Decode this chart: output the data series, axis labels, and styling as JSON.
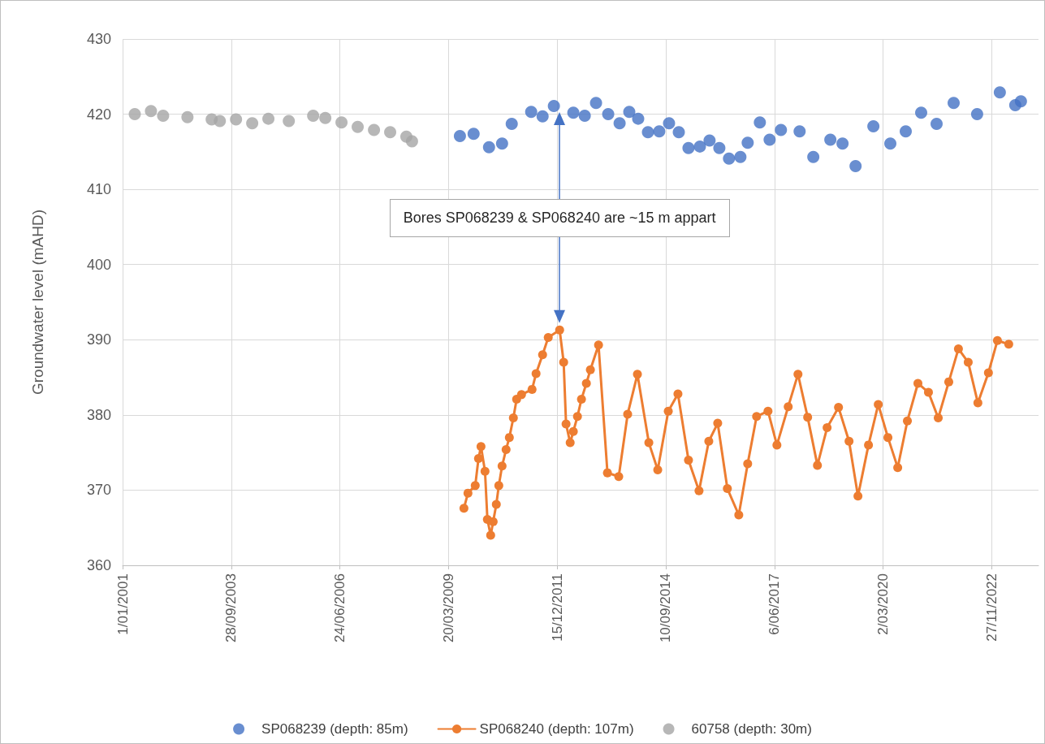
{
  "chart_data": {
    "type": "scatter",
    "ylabel": "Groundwater level (mAHD)",
    "xlim": [
      "2001-01-01",
      "2024-02-01"
    ],
    "xticks": [
      {
        "value": "2001-01-01",
        "label": "1/01/2001"
      },
      {
        "value": "2003-09-28",
        "label": "28/09/2003"
      },
      {
        "value": "2006-06-24",
        "label": "24/06/2006"
      },
      {
        "value": "2009-03-20",
        "label": "20/03/2009"
      },
      {
        "value": "2011-12-15",
        "label": "15/12/2011"
      },
      {
        "value": "2014-09-10",
        "label": "10/09/2014"
      },
      {
        "value": "2017-06-06",
        "label": "6/06/2017"
      },
      {
        "value": "2020-03-02",
        "label": "2/03/2020"
      },
      {
        "value": "2022-11-27",
        "label": "27/11/2022"
      }
    ],
    "ylim": [
      360,
      430
    ],
    "yticks": [
      360,
      370,
      380,
      390,
      400,
      410,
      420,
      430
    ],
    "grid": true,
    "legend": "bottom",
    "marker": "circle",
    "annotations": [
      "Bores SP068239 & SP068240 are ~15 m appart"
    ],
    "series": [
      {
        "name": "SP068239 (depth: 85m)",
        "color": "#4472c4",
        "x": [
          "2009-07-03",
          "2009-11-06",
          "2010-03-28",
          "2010-07-26",
          "2010-10-23",
          "2011-04-20",
          "2011-08-03",
          "2011-11-15",
          "2012-05-12",
          "2012-08-25",
          "2012-12-07",
          "2013-03-29",
          "2013-07-12",
          "2013-10-09",
          "2013-12-30",
          "2014-03-30",
          "2014-07-12",
          "2014-10-10",
          "2015-01-08",
          "2015-04-07",
          "2015-07-21",
          "2015-10-18",
          "2016-01-16",
          "2016-04-14",
          "2016-07-28",
          "2016-10-03",
          "2017-01-23",
          "2017-04-23",
          "2017-08-05",
          "2018-01-24",
          "2018-05-30",
          "2018-11-03",
          "2019-02-23",
          "2019-06-23",
          "2019-12-04",
          "2020-05-08",
          "2020-09-27",
          "2021-02-16",
          "2021-07-08",
          "2021-12-12",
          "2022-07-16",
          "2023-02-10",
          "2023-07-02",
          "2023-08-23"
        ],
        "values": [
          417.1,
          417.4,
          415.6,
          416.1,
          418.7,
          420.3,
          419.7,
          421.1,
          420.2,
          419.8,
          421.5,
          420.0,
          418.8,
          420.3,
          419.4,
          417.6,
          417.7,
          418.8,
          417.6,
          415.5,
          415.7,
          416.5,
          415.5,
          414.1,
          414.3,
          416.2,
          418.9,
          416.6,
          417.9,
          417.7,
          414.3,
          416.6,
          416.1,
          413.1,
          418.4,
          416.1,
          417.7,
          420.2,
          418.7,
          421.5,
          420.0,
          422.9,
          421.2,
          421.7
        ]
      },
      {
        "name": "SP068240 (depth: 107m)",
        "type": "line",
        "color": "#ed7d31",
        "x": [
          "2009-08-09",
          "2009-09-15",
          "2009-11-21",
          "2009-12-21",
          "2010-01-13",
          "2010-02-19",
          "2010-03-13",
          "2010-04-12",
          "2010-05-05",
          "2010-06-03",
          "2010-06-26",
          "2010-07-26",
          "2010-09-01",
          "2010-10-01",
          "2010-11-07",
          "2010-12-07",
          "2011-01-21",
          "2011-04-28",
          "2011-06-04",
          "2011-08-03",
          "2011-09-24",
          "2012-01-07",
          "2012-02-13",
          "2012-03-06",
          "2012-04-13",
          "2012-05-12",
          "2012-06-19",
          "2012-07-26",
          "2012-09-09",
          "2012-10-16",
          "2012-12-30",
          "2013-03-22",
          "2013-07-04",
          "2013-09-24",
          "2013-12-23",
          "2014-04-07",
          "2014-06-28",
          "2014-10-03",
          "2014-12-31",
          "2015-04-07",
          "2015-07-13",
          "2015-10-11",
          "2016-01-01",
          "2016-03-30",
          "2016-07-13",
          "2016-10-03",
          "2016-12-24",
          "2017-04-08",
          "2017-06-29",
          "2017-10-11",
          "2018-01-09",
          "2018-04-08",
          "2018-07-07",
          "2018-10-04",
          "2019-01-17",
          "2019-04-24",
          "2019-07-15",
          "2019-10-20",
          "2020-01-18",
          "2020-04-16",
          "2020-07-15",
          "2020-10-12",
          "2021-01-17",
          "2021-04-24",
          "2021-07-23",
          "2021-10-28",
          "2022-01-25",
          "2022-04-25",
          "2022-07-23",
          "2022-10-28",
          "2023-01-19",
          "2023-05-03"
        ],
        "values": [
          367.6,
          369.6,
          370.6,
          374.2,
          375.8,
          372.5,
          366.1,
          364.0,
          365.8,
          368.1,
          370.6,
          373.2,
          375.4,
          377.0,
          379.6,
          382.1,
          382.7,
          383.4,
          385.5,
          388.0,
          390.3,
          391.3,
          387.0,
          378.8,
          376.3,
          377.8,
          379.8,
          382.1,
          384.2,
          386.0,
          389.3,
          372.3,
          371.8,
          380.1,
          385.4,
          376.3,
          372.7,
          380.5,
          382.8,
          374.0,
          369.9,
          376.5,
          378.9,
          370.2,
          366.7,
          373.5,
          379.8,
          380.5,
          376.0,
          381.1,
          385.4,
          379.7,
          373.3,
          378.3,
          381.0,
          376.5,
          369.2,
          376.0,
          381.4,
          377.0,
          373.0,
          379.2,
          384.2,
          383.0,
          379.6,
          384.4,
          388.8,
          387.0,
          381.6,
          385.6,
          389.9,
          389.4
        ]
      },
      {
        "name": "60758 (depth: 30m)",
        "color": "#a5a5a5",
        "x": [
          "2001-04-23",
          "2001-09-19",
          "2002-01-09",
          "2002-08-21",
          "2003-04-01",
          "2003-06-15",
          "2003-11-11",
          "2004-04-08",
          "2004-09-04",
          "2005-03-11",
          "2005-10-21",
          "2006-02-10",
          "2006-07-09",
          "2006-12-05",
          "2007-05-04",
          "2007-09-30",
          "2008-02-26",
          "2008-04-18"
        ],
        "values": [
          420.0,
          420.4,
          419.8,
          419.6,
          419.3,
          419.1,
          419.3,
          418.8,
          419.4,
          419.1,
          419.8,
          419.5,
          418.9,
          418.3,
          417.9,
          417.6,
          417.0,
          416.4
        ]
      }
    ]
  }
}
